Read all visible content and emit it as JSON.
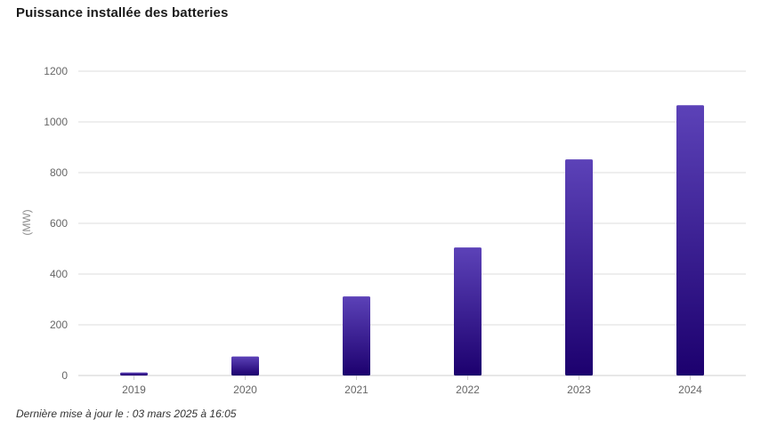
{
  "title": "Puissance installée des batteries",
  "footnote": "Dernière mise à jour le : 03 mars 2025 à 16:05",
  "colors": {
    "bar_top": "#5c42b8",
    "bar_bottom": "#1c006e",
    "grid": "#dcdcdc",
    "axis": "#cfcfcf"
  },
  "chart_data": {
    "type": "bar",
    "title": "Puissance installée des batteries",
    "xlabel": "",
    "ylabel": "(MW)",
    "categories": [
      "2019",
      "2020",
      "2021",
      "2022",
      "2023",
      "2024"
    ],
    "values": [
      12,
      75,
      312,
      505,
      852,
      1066
    ],
    "ylim": [
      0,
      1200
    ],
    "yticks": [
      0,
      200,
      400,
      600,
      800,
      1000,
      1200
    ],
    "ytick_labels": [
      "0",
      "200",
      "400",
      "600",
      "800",
      "1000",
      "1200"
    ],
    "grid": true,
    "legend": "none"
  }
}
